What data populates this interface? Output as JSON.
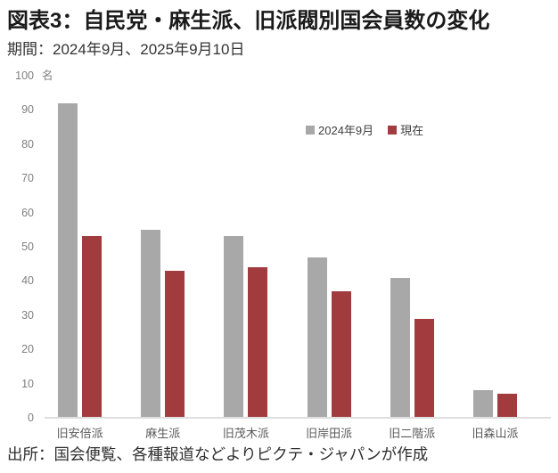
{
  "header": {
    "title": "図表3：自民党・麻生派、旧派閥別国会員数の変化",
    "period": "期間：2024年9月、2025年9月10日"
  },
  "chart_data": {
    "type": "bar",
    "title": "図表3：自民党・麻生派、旧派閥別国会員数の変化",
    "subtitle": "期間：2024年9月、2025年9月10日",
    "unit": "名",
    "categories": [
      "旧安倍派",
      "麻生派",
      "旧茂木派",
      "旧岸田派",
      "旧二階派",
      "旧森山派"
    ],
    "series": [
      {
        "name": "2024年9月",
        "color": "#a8a8a8",
        "values": [
          92,
          55,
          53,
          47,
          41,
          8
        ]
      },
      {
        "name": "現在",
        "color": "#a23b3e",
        "values": [
          53,
          43,
          44,
          37,
          29,
          7
        ]
      }
    ],
    "ylim": [
      0,
      100
    ],
    "ytick_step": 10,
    "grid": false,
    "legend_position": "upper-right-inside"
  },
  "footer": {
    "source": "出所：国会便覧、各種報道などよりピクテ・ジャパンが作成"
  },
  "colors": {
    "series_2024": "#a8a8a8",
    "series_current": "#a23b3e",
    "axis_line": "#dedede",
    "tick_text": "#7f7f7f",
    "category_text": "#595959",
    "title_text": "#1a1a1a"
  }
}
